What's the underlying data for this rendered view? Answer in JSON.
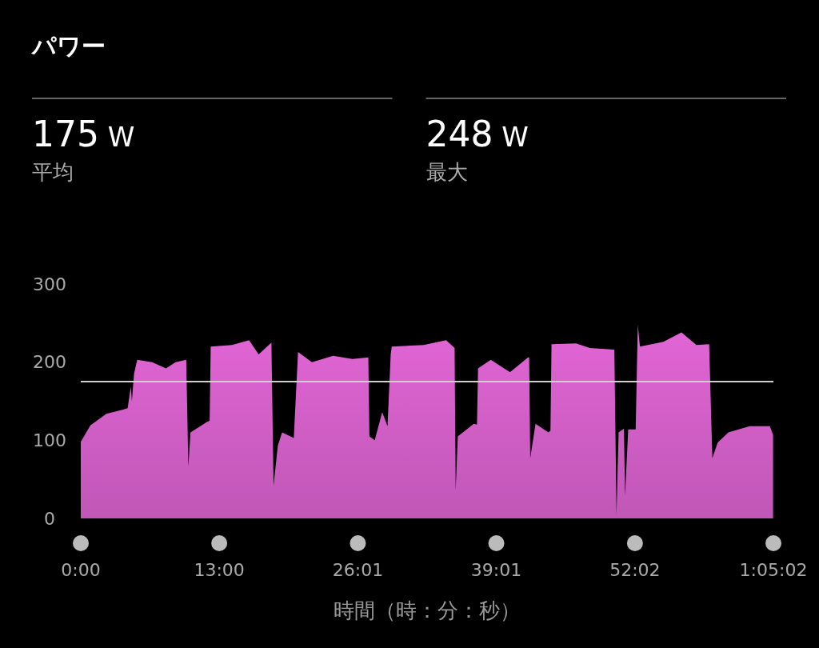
{
  "chart_data": {
    "type": "area",
    "title": "パワー",
    "xlabel": "時間（時：分：秒）",
    "annotations": [
      "175 W",
      "平均",
      "248 W",
      "最大"
    ],
    "x": [
      0.0,
      0.9,
      2.4,
      3.9,
      4.4,
      4.7,
      4.8,
      5.0,
      5.3,
      6.7,
      8.0,
      8.9,
      9.9,
      10.1,
      10.3,
      11.8,
      12.1,
      12.2,
      14.2,
      15.8,
      16.7,
      17.9,
      18.1,
      18.5,
      18.9,
      20.0,
      20.4,
      21.7,
      23.7,
      25.5,
      27.0,
      27.1,
      27.6,
      28.3,
      28.8,
      29.1,
      29.2,
      32.2,
      34.3,
      35.1,
      35.2,
      35.4,
      36.9,
      37.2,
      37.3,
      38.5,
      40.3,
      42.0,
      42.1,
      42.2,
      42.7,
      43.9,
      44.1,
      44.2,
      46.5,
      47.8,
      50.1,
      50.3,
      50.5,
      51.0,
      51.1,
      51.4,
      52.1,
      52.3,
      52.5,
      54.7,
      56.4,
      57.8,
      59.0,
      59.3,
      59.8,
      60.8,
      62.8,
      64.7,
      65.0
    ],
    "series": [
      {
        "color": "#e266d6",
        "values": [
          98,
          119,
          134,
          139,
          141,
          169,
          150,
          185,
          203,
          200,
          192,
          200,
          203,
          66,
          110,
          123,
          125,
          220,
          222,
          228,
          210,
          225,
          42,
          93,
          110,
          103,
          213,
          200,
          208,
          204,
          206,
          105,
          100,
          136,
          118,
          210,
          220,
          222,
          228,
          218,
          36,
          105,
          121,
          120,
          192,
          203,
          187,
          206,
          206,
          77,
          121,
          110,
          112,
          223,
          224,
          218,
          216,
          5,
          110,
          115,
          29,
          114,
          114,
          248,
          220,
          226,
          238,
          222,
          223,
          77,
          97,
          110,
          118,
          118,
          107
        ]
      }
    ],
    "xlim": [
      0,
      65.033
    ],
    "ylim": [
      0,
      300
    ],
    "yticks": [
      0,
      100,
      200,
      300
    ],
    "xticks": [
      {
        "value": 0,
        "label": "0:00"
      },
      {
        "value": 13,
        "label": "13:00"
      },
      {
        "value": 26.017,
        "label": "26:01"
      },
      {
        "value": 39.017,
        "label": "39:01"
      },
      {
        "value": 52.033,
        "label": "52:02"
      },
      {
        "value": 65.033,
        "label": "1:05:02"
      }
    ],
    "ref_lines": [
      {
        "axis": "y",
        "value": 175,
        "color": "#cfcfcf"
      }
    ]
  }
}
